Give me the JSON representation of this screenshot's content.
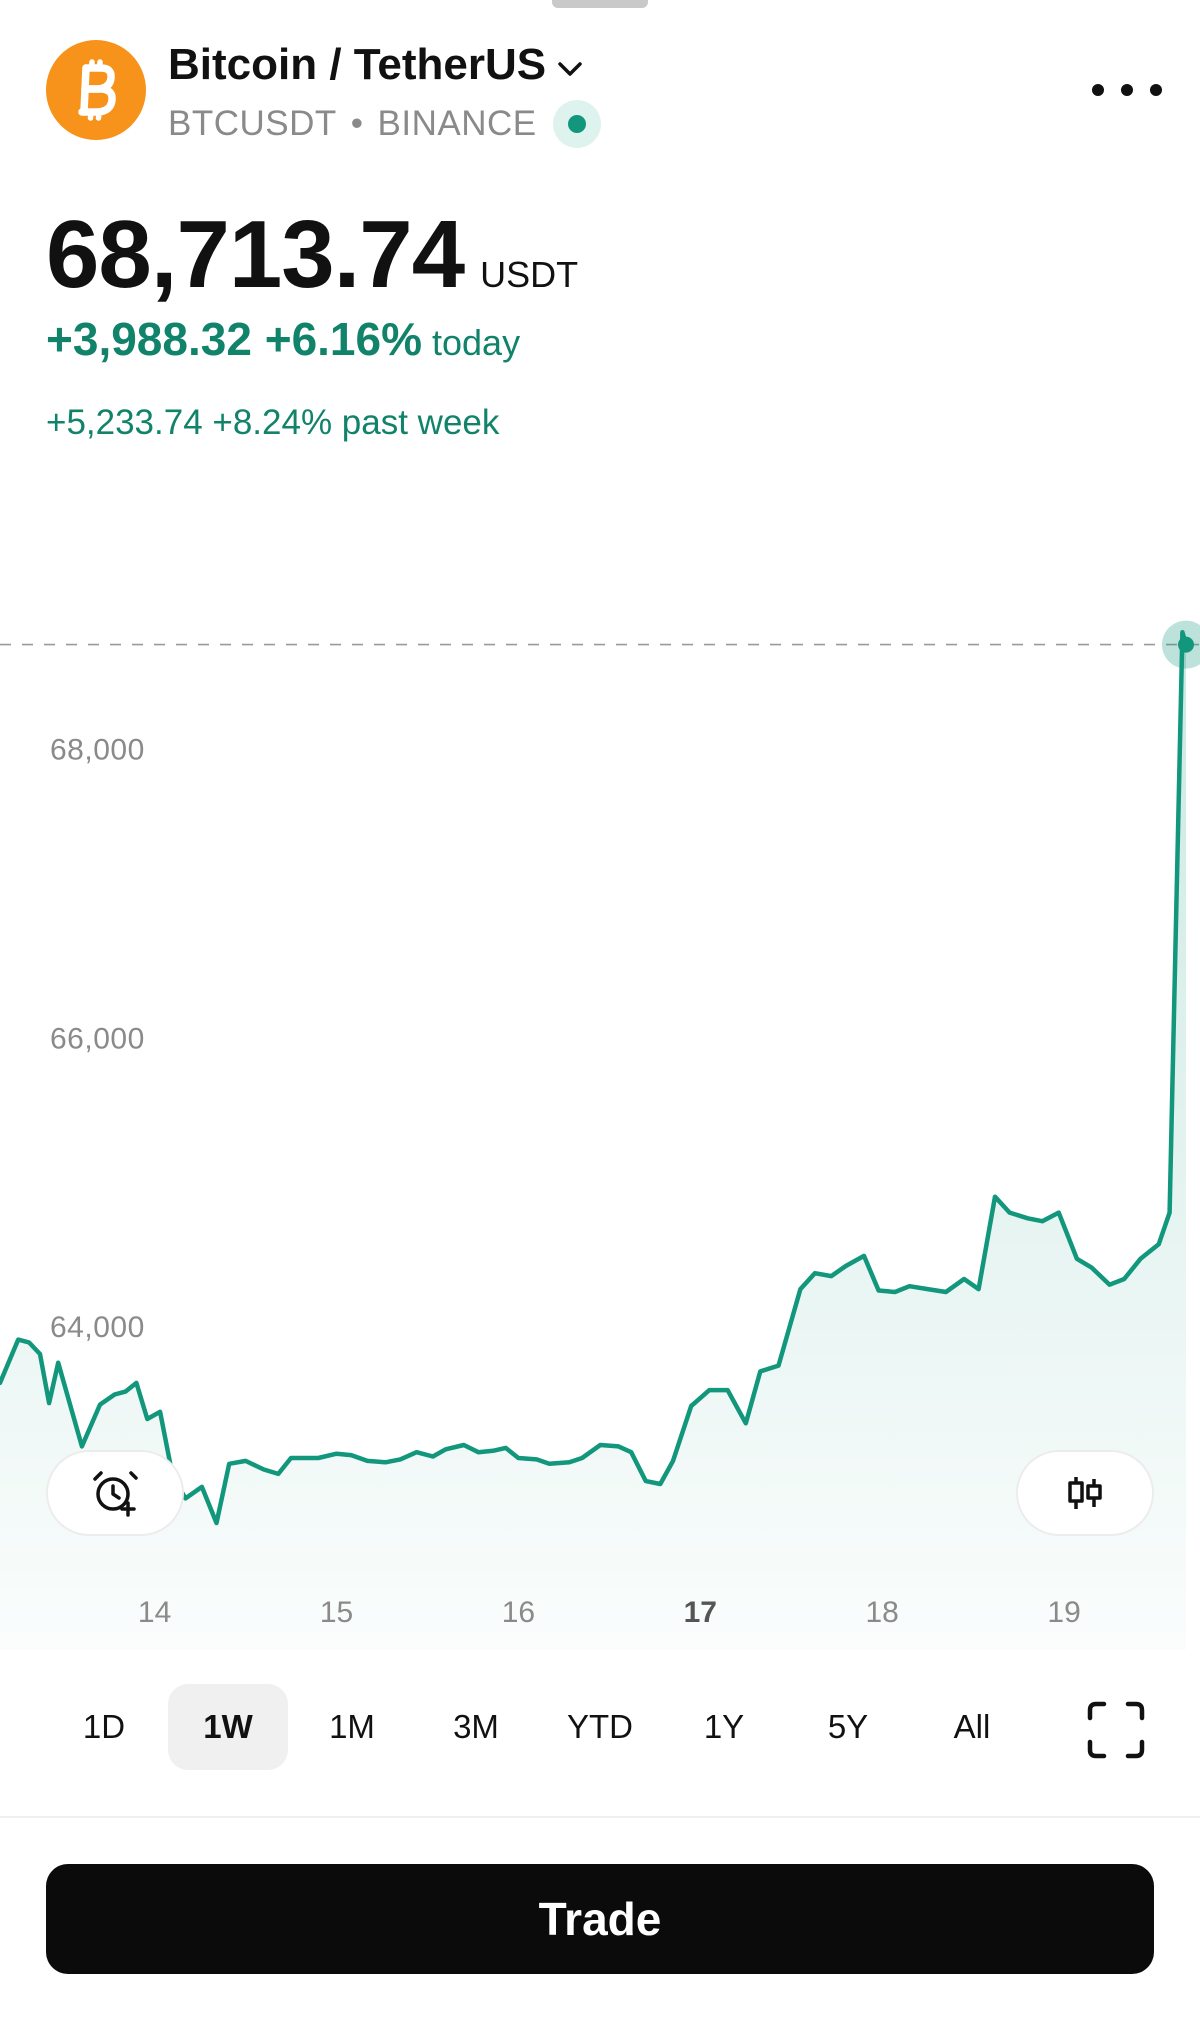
{
  "header": {
    "title": "Bitcoin / TetherUS",
    "ticker": "BTCUSDT",
    "separator": "•",
    "exchange": "BINANCE",
    "logo_icon": "bitcoin-logo",
    "menu_icon": "more-horizontal-icon"
  },
  "quote": {
    "price": "68,713.74",
    "unit": "USDT",
    "today_change": "+3,988.32 +6.16%",
    "today_label": "today",
    "week_change": "+5,233.74 +8.24% past week"
  },
  "colors": {
    "accent": "#12977d",
    "positive_text": "#12836b",
    "bitcoin_orange": "#F7931A",
    "dashed_line": "#9a9a9a"
  },
  "chart_data": {
    "type": "area",
    "y_ticks": [
      "68,000",
      "66,000",
      "64,000"
    ],
    "y_tick_values": [
      68000,
      66000,
      64000
    ],
    "x_ticks": [
      "14",
      "15",
      "16",
      "17",
      "18",
      "19"
    ],
    "x_tick_bold": "17",
    "x_range": [
      13.15,
      19.67
    ],
    "ylim": [
      61750,
      69300
    ],
    "last_price": 68713.74,
    "grid": false,
    "series": [
      {
        "values": [
          [
            13.15,
            63600
          ],
          [
            13.25,
            63900
          ],
          [
            13.31,
            63880
          ],
          [
            13.37,
            63800
          ],
          [
            13.42,
            63460
          ],
          [
            13.47,
            63740
          ],
          [
            13.6,
            63160
          ],
          [
            13.7,
            63450
          ],
          [
            13.78,
            63520
          ],
          [
            13.84,
            63540
          ],
          [
            13.9,
            63600
          ],
          [
            13.96,
            63350
          ],
          [
            14.03,
            63400
          ],
          [
            14.1,
            62950
          ],
          [
            14.17,
            62800
          ],
          [
            14.26,
            62880
          ],
          [
            14.34,
            62630
          ],
          [
            14.41,
            63040
          ],
          [
            14.5,
            63060
          ],
          [
            14.6,
            63000
          ],
          [
            14.68,
            62970
          ],
          [
            14.75,
            63080
          ],
          [
            14.82,
            63080
          ],
          [
            14.9,
            63080
          ],
          [
            15.0,
            63110
          ],
          [
            15.08,
            63100
          ],
          [
            15.17,
            63060
          ],
          [
            15.27,
            63050
          ],
          [
            15.35,
            63070
          ],
          [
            15.44,
            63120
          ],
          [
            15.53,
            63090
          ],
          [
            15.6,
            63140
          ],
          [
            15.7,
            63170
          ],
          [
            15.78,
            63120
          ],
          [
            15.86,
            63130
          ],
          [
            15.93,
            63150
          ],
          [
            16.0,
            63080
          ],
          [
            16.1,
            63070
          ],
          [
            16.17,
            63040
          ],
          [
            16.28,
            63050
          ],
          [
            16.35,
            63080
          ],
          [
            16.45,
            63170
          ],
          [
            16.55,
            63160
          ],
          [
            16.62,
            63120
          ],
          [
            16.7,
            62920
          ],
          [
            16.78,
            62900
          ],
          [
            16.85,
            63060
          ],
          [
            16.95,
            63440
          ],
          [
            17.05,
            63550
          ],
          [
            17.15,
            63550
          ],
          [
            17.25,
            63320
          ],
          [
            17.33,
            63680
          ],
          [
            17.43,
            63720
          ],
          [
            17.55,
            64250
          ],
          [
            17.63,
            64360
          ],
          [
            17.72,
            64340
          ],
          [
            17.8,
            64410
          ],
          [
            17.9,
            64480
          ],
          [
            17.98,
            64240
          ],
          [
            18.07,
            64230
          ],
          [
            18.15,
            64270
          ],
          [
            18.25,
            64250
          ],
          [
            18.35,
            64230
          ],
          [
            18.45,
            64320
          ],
          [
            18.53,
            64250
          ],
          [
            18.62,
            64890
          ],
          [
            18.7,
            64780
          ],
          [
            18.8,
            64740
          ],
          [
            18.88,
            64720
          ],
          [
            18.97,
            64780
          ],
          [
            19.07,
            64460
          ],
          [
            19.15,
            64400
          ],
          [
            19.25,
            64280
          ],
          [
            19.33,
            64320
          ],
          [
            19.42,
            64460
          ],
          [
            19.52,
            64560
          ],
          [
            19.58,
            64780
          ],
          [
            19.65,
            68800
          ],
          [
            19.67,
            68713.74
          ]
        ]
      }
    ]
  },
  "actions": {
    "alert_icon": "add-alert-clock-icon",
    "candle_icon": "candlestick-icon",
    "fullscreen_icon": "fullscreen-icon"
  },
  "ranges": {
    "items": [
      "1D",
      "1W",
      "1M",
      "3M",
      "YTD",
      "1Y",
      "5Y",
      "All"
    ],
    "active": "1W"
  },
  "trade": {
    "label": "Trade"
  }
}
